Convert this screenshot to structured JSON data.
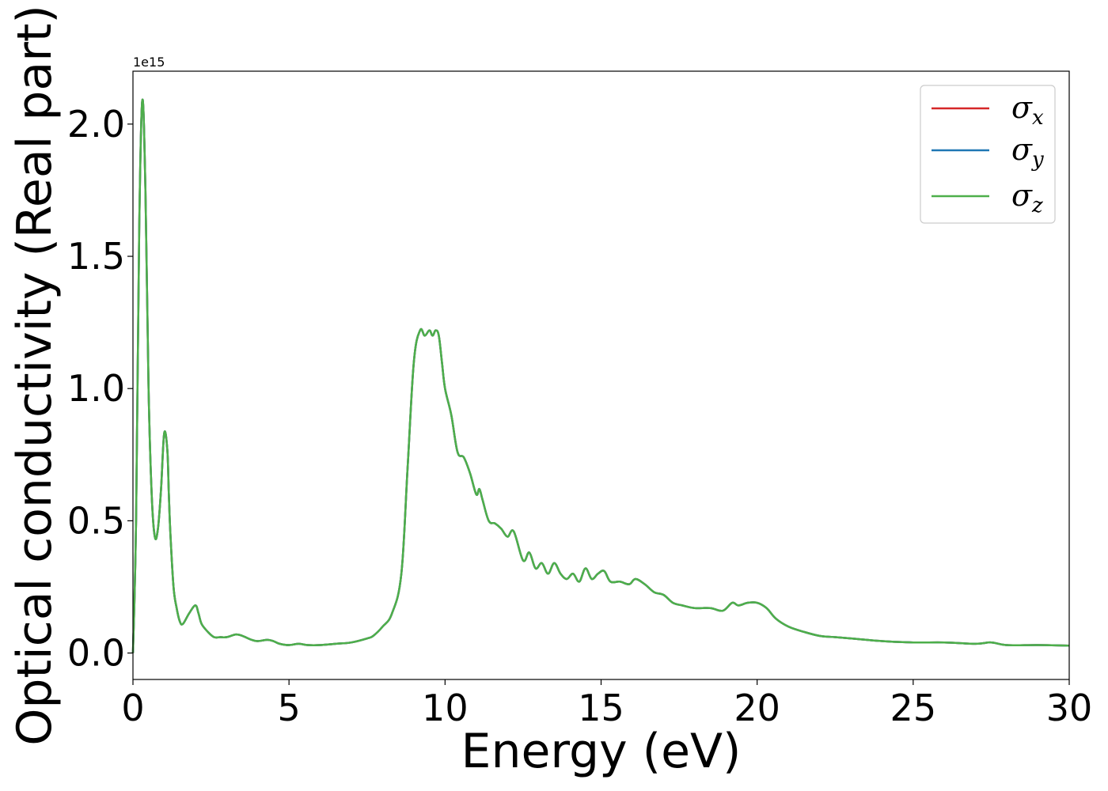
{
  "chart_data": {
    "type": "line",
    "title": "",
    "xlabel": "Energy (eV)",
    "ylabel": "Optical conductivity (Real part)",
    "y_offset_label": "1e15",
    "xlim": [
      0,
      30
    ],
    "ylim": [
      -0.1,
      2.2
    ],
    "x_ticks": [
      0,
      5,
      10,
      15,
      20,
      25,
      30
    ],
    "x_tick_labels": [
      "0",
      "5",
      "10",
      "15",
      "20",
      "25",
      "30"
    ],
    "y_ticks": [
      0.0,
      0.5,
      1.0,
      1.5,
      2.0
    ],
    "y_tick_labels": [
      "0.0",
      "0.5",
      "1.0",
      "1.5",
      "2.0"
    ],
    "grid": false,
    "legend_position": "top-right",
    "x": [
      0.0,
      0.1,
      0.2,
      0.3,
      0.4,
      0.5,
      0.6,
      0.7,
      0.8,
      0.9,
      1.0,
      1.1,
      1.15,
      1.2,
      1.3,
      1.4,
      1.5,
      1.6,
      1.8,
      2.0,
      2.1,
      2.2,
      2.4,
      2.6,
      2.8,
      3.0,
      3.3,
      3.5,
      3.8,
      4.0,
      4.3,
      4.5,
      4.7,
      5.0,
      5.3,
      5.6,
      6.0,
      6.5,
      7.0,
      7.5,
      7.7,
      8.0,
      8.3,
      8.6,
      8.8,
      9.0,
      9.2,
      9.35,
      9.5,
      9.6,
      9.7,
      9.8,
      9.9,
      10.0,
      10.2,
      10.4,
      10.6,
      10.8,
      11.0,
      11.1,
      11.2,
      11.4,
      11.6,
      11.8,
      12.0,
      12.2,
      12.5,
      12.7,
      12.9,
      13.1,
      13.3,
      13.5,
      13.7,
      13.9,
      14.1,
      14.3,
      14.5,
      14.7,
      14.9,
      15.1,
      15.3,
      15.6,
      15.9,
      16.1,
      16.4,
      16.7,
      17.0,
      17.3,
      17.6,
      18.0,
      18.5,
      18.9,
      19.2,
      19.4,
      19.7,
      20.0,
      20.3,
      20.6,
      21.0,
      21.5,
      22.0,
      22.5,
      23.0,
      24.0,
      25.0,
      26.0,
      27.0,
      27.5,
      28.0,
      29.0,
      30.0
    ],
    "series": [
      {
        "name": "σ_x",
        "color": "#d62728",
        "values": [
          0.0,
          0.5,
          1.6,
          2.09,
          1.75,
          1.0,
          0.6,
          0.44,
          0.47,
          0.62,
          0.83,
          0.77,
          0.6,
          0.45,
          0.25,
          0.17,
          0.12,
          0.11,
          0.15,
          0.18,
          0.15,
          0.11,
          0.08,
          0.06,
          0.06,
          0.06,
          0.07,
          0.065,
          0.05,
          0.045,
          0.05,
          0.045,
          0.035,
          0.03,
          0.035,
          0.03,
          0.03,
          0.035,
          0.04,
          0.055,
          0.065,
          0.1,
          0.15,
          0.3,
          0.7,
          1.1,
          1.22,
          1.2,
          1.22,
          1.2,
          1.22,
          1.2,
          1.1,
          1.0,
          0.9,
          0.76,
          0.74,
          0.68,
          0.6,
          0.62,
          0.58,
          0.5,
          0.49,
          0.47,
          0.44,
          0.46,
          0.35,
          0.38,
          0.32,
          0.34,
          0.3,
          0.34,
          0.3,
          0.28,
          0.3,
          0.27,
          0.32,
          0.28,
          0.3,
          0.31,
          0.27,
          0.27,
          0.26,
          0.28,
          0.26,
          0.23,
          0.22,
          0.19,
          0.18,
          0.17,
          0.17,
          0.16,
          0.19,
          0.18,
          0.19,
          0.19,
          0.17,
          0.13,
          0.1,
          0.08,
          0.065,
          0.06,
          0.055,
          0.045,
          0.04,
          0.04,
          0.035,
          0.04,
          0.03,
          0.03,
          0.028
        ]
      },
      {
        "name": "σ_y",
        "color": "#1f77b4",
        "values": [
          0.0,
          0.5,
          1.6,
          2.09,
          1.75,
          1.0,
          0.6,
          0.44,
          0.47,
          0.62,
          0.83,
          0.77,
          0.6,
          0.45,
          0.25,
          0.17,
          0.12,
          0.11,
          0.15,
          0.18,
          0.15,
          0.11,
          0.08,
          0.06,
          0.06,
          0.06,
          0.07,
          0.065,
          0.05,
          0.045,
          0.05,
          0.045,
          0.035,
          0.03,
          0.035,
          0.03,
          0.03,
          0.035,
          0.04,
          0.055,
          0.065,
          0.1,
          0.15,
          0.3,
          0.7,
          1.1,
          1.22,
          1.2,
          1.22,
          1.2,
          1.22,
          1.2,
          1.1,
          1.0,
          0.9,
          0.76,
          0.74,
          0.68,
          0.6,
          0.62,
          0.58,
          0.5,
          0.49,
          0.47,
          0.44,
          0.46,
          0.35,
          0.38,
          0.32,
          0.34,
          0.3,
          0.34,
          0.3,
          0.28,
          0.3,
          0.27,
          0.32,
          0.28,
          0.3,
          0.31,
          0.27,
          0.27,
          0.26,
          0.28,
          0.26,
          0.23,
          0.22,
          0.19,
          0.18,
          0.17,
          0.17,
          0.16,
          0.19,
          0.18,
          0.19,
          0.19,
          0.17,
          0.13,
          0.1,
          0.08,
          0.065,
          0.06,
          0.055,
          0.045,
          0.04,
          0.04,
          0.035,
          0.04,
          0.03,
          0.03,
          0.028
        ]
      },
      {
        "name": "σ_z",
        "color": "#4daf4a",
        "values": [
          0.0,
          0.5,
          1.6,
          2.09,
          1.75,
          1.0,
          0.6,
          0.44,
          0.47,
          0.62,
          0.83,
          0.77,
          0.6,
          0.45,
          0.25,
          0.17,
          0.12,
          0.11,
          0.15,
          0.18,
          0.15,
          0.11,
          0.08,
          0.06,
          0.06,
          0.06,
          0.07,
          0.065,
          0.05,
          0.045,
          0.05,
          0.045,
          0.035,
          0.03,
          0.035,
          0.03,
          0.03,
          0.035,
          0.04,
          0.055,
          0.065,
          0.1,
          0.15,
          0.3,
          0.7,
          1.1,
          1.22,
          1.2,
          1.22,
          1.2,
          1.22,
          1.2,
          1.1,
          1.0,
          0.9,
          0.76,
          0.74,
          0.68,
          0.6,
          0.62,
          0.58,
          0.5,
          0.49,
          0.47,
          0.44,
          0.46,
          0.35,
          0.38,
          0.32,
          0.34,
          0.3,
          0.34,
          0.3,
          0.28,
          0.3,
          0.27,
          0.32,
          0.28,
          0.3,
          0.31,
          0.27,
          0.27,
          0.26,
          0.28,
          0.26,
          0.23,
          0.22,
          0.19,
          0.18,
          0.17,
          0.17,
          0.16,
          0.19,
          0.18,
          0.19,
          0.19,
          0.17,
          0.13,
          0.1,
          0.08,
          0.065,
          0.06,
          0.055,
          0.045,
          0.04,
          0.04,
          0.035,
          0.04,
          0.03,
          0.03,
          0.028
        ]
      }
    ],
    "legend": [
      {
        "symbol": "σ",
        "subscript": "x",
        "color": "#d62728"
      },
      {
        "symbol": "σ",
        "subscript": "y",
        "color": "#1f77b4"
      },
      {
        "symbol": "σ",
        "subscript": "z",
        "color": "#4daf4a"
      }
    ]
  }
}
